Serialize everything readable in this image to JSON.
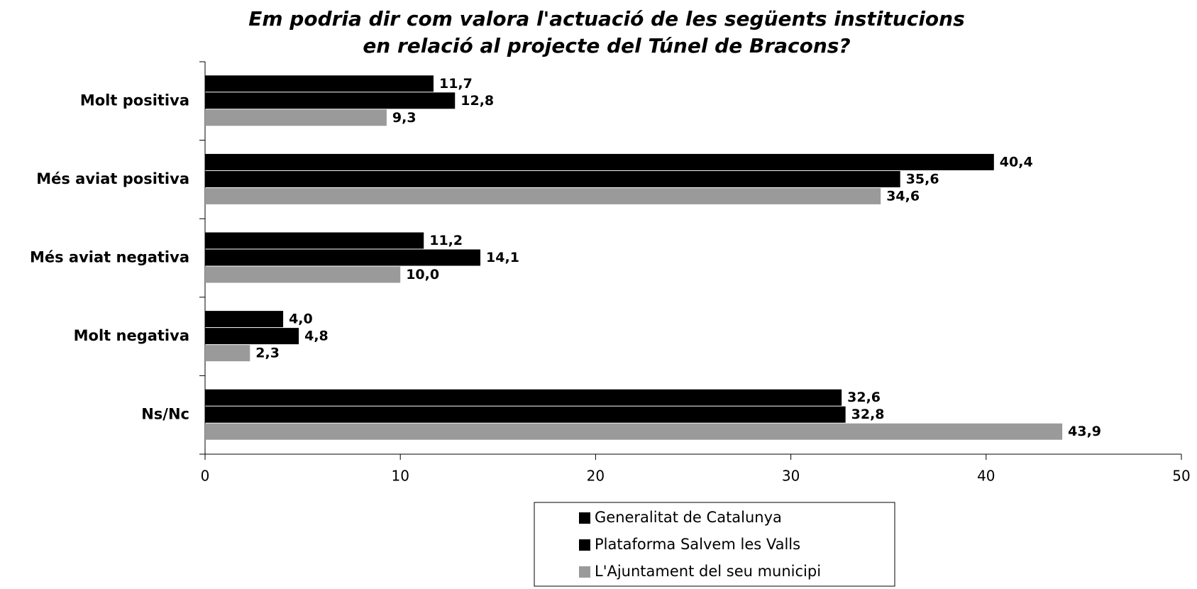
{
  "chart_data": {
    "type": "hbar",
    "title": [
      "Em podria dir com valora l'actuació de les següents institucions",
      "en relació al projecte del Túnel de Bracons?"
    ],
    "categories": [
      "Molt positiva",
      "Més aviat positiva",
      "Més aviat negativa",
      "Molt negativa",
      "Ns/Nc"
    ],
    "series": [
      {
        "name": "Generalitat de Catalunya",
        "color": "#000000",
        "values": [
          11.7,
          40.4,
          11.2,
          4.0,
          32.6
        ],
        "value_labels": [
          "11,7",
          "40,4",
          "11,2",
          "4,0",
          "32,6"
        ]
      },
      {
        "name": "Plataforma Salvem les Valls",
        "color": "#000000",
        "values": [
          12.8,
          35.6,
          14.1,
          4.8,
          32.8
        ],
        "value_labels": [
          "12,8",
          "35,6",
          "14,1",
          "4,8",
          "32,8"
        ]
      },
      {
        "name": "L'Ajuntament del seu municipi",
        "color": "#9a9a9a",
        "values": [
          9.3,
          34.6,
          10.0,
          2.3,
          43.9
        ],
        "value_labels": [
          "9,3",
          "34,6",
          "10,0",
          "2,3",
          "43,9"
        ]
      }
    ],
    "xlim": [
      0,
      50
    ],
    "xticks": [
      0,
      10,
      20,
      30,
      40,
      50
    ],
    "legend": "bottom"
  }
}
